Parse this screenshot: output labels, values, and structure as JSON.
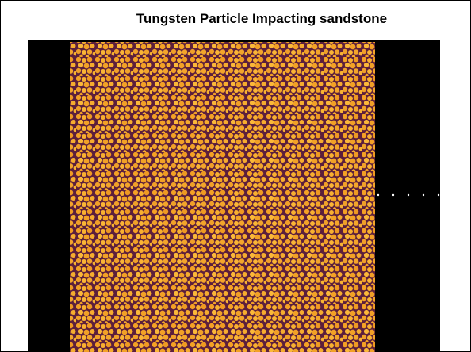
{
  "title": "Tungsten Particle Impacting sandstone"
}
